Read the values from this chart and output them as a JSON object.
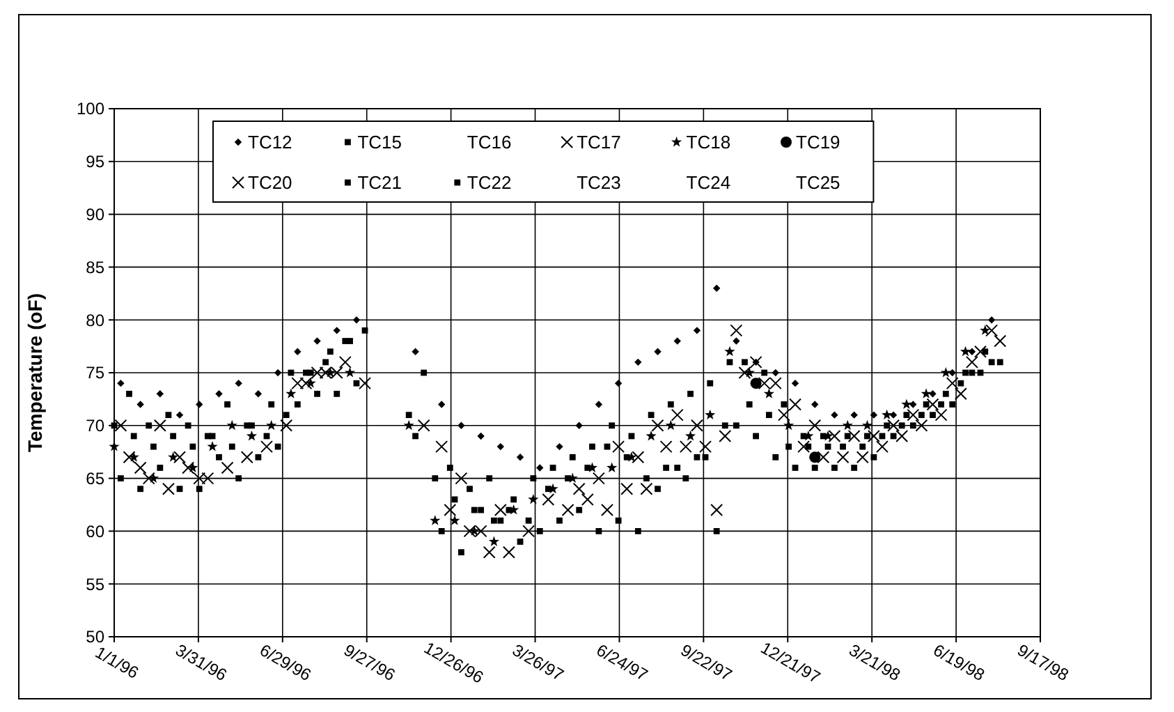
{
  "chart_data": {
    "type": "scatter",
    "ylabel": "Temperature (oF)",
    "xlim": [
      "1996-01-01",
      "1998-09-17"
    ],
    "xticks": [
      {
        "value": "1996-01-01",
        "label": "1/1/96"
      },
      {
        "value": "1996-03-31",
        "label": "3/31/96"
      },
      {
        "value": "1996-06-29",
        "label": "6/29/96"
      },
      {
        "value": "1996-09-27",
        "label": "9/27/96"
      },
      {
        "value": "1996-12-26",
        "label": "12/26/96"
      },
      {
        "value": "1997-03-26",
        "label": "3/26/97"
      },
      {
        "value": "1997-06-24",
        "label": "6/24/97"
      },
      {
        "value": "1997-09-22",
        "label": "9/22/97"
      },
      {
        "value": "1997-12-21",
        "label": "12/21/97"
      },
      {
        "value": "1998-03-21",
        "label": "3/21/98"
      },
      {
        "value": "1998-06-19",
        "label": "6/19/98"
      },
      {
        "value": "1998-09-17",
        "label": "9/17/98"
      }
    ],
    "ylim": [
      50,
      100
    ],
    "yticks": [
      50,
      55,
      60,
      65,
      70,
      75,
      80,
      85,
      90,
      95,
      100
    ],
    "grid": true,
    "legend": "top left",
    "x": [
      "1996-01-08",
      "1996-01-29",
      "1996-02-19",
      "1996-03-11",
      "1996-04-01",
      "1996-04-22",
      "1996-05-13",
      "1996-06-03",
      "1996-06-24",
      "1996-07-15",
      "1996-08-05",
      "1996-08-26",
      "1996-09-16",
      "1996-11-18",
      "1996-12-16",
      "1997-01-06",
      "1997-01-27",
      "1997-02-17",
      "1997-03-10",
      "1997-03-31",
      "1997-04-21",
      "1997-05-12",
      "1997-06-02",
      "1997-06-23",
      "1997-07-14",
      "1997-08-04",
      "1997-08-25",
      "1997-09-15",
      "1997-10-06",
      "1997-10-27",
      "1997-11-17",
      "1997-12-08",
      "1997-12-29",
      "1998-01-19",
      "1998-02-09",
      "1998-03-02",
      "1998-03-23",
      "1998-04-13",
      "1998-05-04",
      "1998-05-25",
      "1998-06-15",
      "1998-07-06",
      "1998-07-27"
    ],
    "series": [
      {
        "name": "TC12",
        "color": "#000000",
        "marker": "diamond",
        "values": [
          74,
          72,
          73,
          71,
          72,
          73,
          74,
          73,
          75,
          77,
          78,
          79,
          80,
          77,
          72,
          70,
          69,
          68,
          67,
          66,
          68,
          70,
          72,
          74,
          76,
          77,
          78,
          79,
          83,
          78,
          76,
          75,
          74,
          72,
          71,
          71,
          71,
          71,
          72,
          73,
          75,
          77,
          80
        ]
      },
      {
        "name": "TC15",
        "color": "#000000",
        "marker": "square",
        "x": [
          "1996-01-17",
          "1996-02-07",
          "1996-02-28",
          "1996-03-20",
          "1996-04-10",
          "1996-05-01",
          "1996-05-22",
          "1996-06-12",
          "1996-07-03",
          "1996-07-24",
          "1996-08-14",
          "1996-09-04",
          "1996-09-25",
          "1996-11-27",
          "1996-12-25",
          "1997-01-15",
          "1997-02-05",
          "1997-02-26",
          "1997-03-19",
          "1997-04-09",
          "1997-04-30",
          "1997-05-21",
          "1997-06-11",
          "1997-07-02",
          "1997-07-23",
          "1997-08-13",
          "1997-09-03",
          "1997-09-24",
          "1997-10-15",
          "1997-11-05",
          "1997-11-26",
          "1997-12-17",
          "1998-01-07",
          "1998-01-28",
          "1998-02-18",
          "1998-03-11",
          "1998-04-01",
          "1998-04-22",
          "1998-05-13",
          "1998-06-03",
          "1998-06-24",
          "1998-07-15",
          "1998-08-05"
        ],
        "values": [
          73,
          70,
          71,
          70,
          69,
          72,
          70,
          69,
          71,
          75,
          76,
          78,
          79,
          75,
          66,
          64,
          65,
          62,
          61,
          64,
          65,
          66,
          68,
          67,
          65,
          66,
          65,
          67,
          70,
          76,
          75,
          72,
          69,
          69,
          68,
          68,
          69,
          70,
          71,
          72,
          74,
          75,
          76
        ]
      },
      {
        "name": "TC16",
        "color": "#000000",
        "marker": "none",
        "values": [
          null,
          null,
          null,
          null,
          null,
          null,
          null,
          null,
          null,
          null,
          null,
          null,
          null,
          null,
          null,
          null,
          null,
          null,
          null,
          null,
          null,
          null,
          null,
          null,
          null,
          null,
          null,
          null,
          null,
          null,
          null,
          null,
          null,
          null,
          null,
          null,
          null,
          null,
          null,
          null,
          null,
          null,
          null
        ]
      },
      {
        "name": "TC17",
        "color": "#000000",
        "marker": "cross",
        "values": [
          70,
          66,
          70,
          67,
          65,
          null,
          null,
          null,
          null,
          74,
          75,
          75,
          null,
          null,
          68,
          65,
          60,
          62,
          null,
          null,
          null,
          64,
          65,
          68,
          67,
          70,
          71,
          70,
          62,
          79,
          76,
          74,
          72,
          70,
          69,
          69,
          69,
          70,
          71,
          72,
          74,
          76,
          79
        ]
      },
      {
        "name": "TC18",
        "color": "#000000",
        "marker": "star",
        "x": [
          "1996-01-01",
          "1996-01-22",
          "1996-02-12",
          "1996-03-04",
          "1996-03-25",
          "1996-04-15",
          "1996-05-06",
          "1996-05-27",
          "1996-06-17",
          "1996-07-08",
          "1996-07-29",
          "1996-08-19",
          "1996-09-09",
          "1996-11-11",
          "1996-12-09",
          "1996-12-30",
          "1997-01-20",
          "1997-02-10",
          "1997-03-03",
          "1997-03-24",
          "1997-04-14",
          "1997-05-05",
          "1997-05-26",
          "1997-06-16",
          "1997-07-07",
          "1997-07-28",
          "1997-08-18",
          "1997-09-08",
          "1997-09-29",
          "1997-10-20",
          "1997-11-10",
          "1997-12-01",
          "1997-12-22",
          "1998-01-12",
          "1998-02-02",
          "1998-02-23",
          "1998-03-16",
          "1998-04-06",
          "1998-04-27",
          "1998-05-18",
          "1998-06-08",
          "1998-06-29",
          "1998-07-20"
        ],
        "values": [
          68,
          67,
          65,
          67,
          66,
          68,
          70,
          69,
          70,
          73,
          74,
          75,
          75,
          70,
          61,
          61,
          60,
          59,
          62,
          63,
          64,
          65,
          66,
          66,
          67,
          69,
          70,
          69,
          71,
          77,
          75,
          73,
          70,
          69,
          69,
          70,
          70,
          71,
          72,
          73,
          75,
          77,
          79
        ]
      },
      {
        "name": "TC19",
        "color": "#000000",
        "marker": "circle",
        "x": [
          "1997-11-17",
          "1998-01-19"
        ],
        "values": [
          74,
          67
        ]
      },
      {
        "name": "TC20",
        "color": "#000000",
        "marker": "cross",
        "x": [
          "1996-01-17",
          "1996-02-07",
          "1996-02-28",
          "1996-03-20",
          "1996-04-10",
          "1996-05-01",
          "1996-05-22",
          "1996-06-12",
          "1996-07-03",
          "1996-07-24",
          "1996-08-14",
          "1996-09-04",
          "1996-09-25",
          "1996-11-27",
          "1996-12-25",
          "1997-01-15",
          "1997-02-05",
          "1997-02-26",
          "1997-03-19",
          "1997-04-09",
          "1997-04-30",
          "1997-05-21",
          "1997-06-11",
          "1997-07-02",
          "1997-07-23",
          "1997-08-13",
          "1997-09-03",
          "1997-09-24",
          "1997-10-15",
          "1997-11-05",
          "1997-11-26",
          "1997-12-17",
          "1998-01-07",
          "1998-01-28",
          "1998-02-18",
          "1998-03-11",
          "1998-04-01",
          "1998-04-22",
          "1998-05-13",
          "1998-06-03",
          "1998-06-24",
          "1998-07-15",
          "1998-08-05"
        ],
        "values": [
          67,
          65,
          64,
          66,
          65,
          66,
          67,
          68,
          70,
          74,
          75,
          76,
          74,
          70,
          62,
          60,
          58,
          58,
          60,
          63,
          62,
          63,
          62,
          64,
          64,
          68,
          68,
          68,
          69,
          75,
          74,
          71,
          68,
          67,
          67,
          67,
          68,
          69,
          70,
          71,
          73,
          77,
          78
        ]
      },
      {
        "name": "TC21",
        "color": "#000000",
        "marker": "square",
        "values": [
          65,
          64,
          66,
          64,
          64,
          67,
          65,
          67,
          68,
          72,
          73,
          73,
          74,
          69,
          60,
          58,
          62,
          61,
          59,
          60,
          61,
          62,
          60,
          61,
          60,
          64,
          66,
          67,
          60,
          70,
          69,
          67,
          66,
          66,
          66,
          66,
          67,
          69,
          70,
          71,
          72,
          75,
          76
        ]
      },
      {
        "name": "TC22",
        "color": "#000000",
        "marker": "square",
        "x": [
          "1996-01-01",
          "1996-01-22",
          "1996-02-12",
          "1996-03-04",
          "1996-03-25",
          "1996-04-15",
          "1996-05-06",
          "1996-05-27",
          "1996-06-17",
          "1996-07-08",
          "1996-07-29",
          "1996-08-19",
          "1996-09-09",
          "1996-11-11",
          "1996-12-09",
          "1996-12-30",
          "1997-01-20",
          "1997-02-10",
          "1997-03-03",
          "1997-03-24",
          "1997-04-14",
          "1997-05-05",
          "1997-05-26",
          "1997-06-16",
          "1997-07-07",
          "1997-07-28",
          "1997-08-18",
          "1997-09-08",
          "1997-09-29",
          "1997-10-20",
          "1997-11-10",
          "1997-12-01",
          "1997-12-22",
          "1998-01-12",
          "1998-02-02",
          "1998-02-23",
          "1998-03-16",
          "1998-04-06",
          "1998-04-27",
          "1998-05-18",
          "1998-06-08",
          "1998-06-29",
          "1998-07-20"
        ],
        "values": [
          70,
          69,
          68,
          69,
          68,
          69,
          68,
          70,
          72,
          75,
          75,
          77,
          78,
          71,
          65,
          63,
          62,
          61,
          63,
          65,
          66,
          67,
          68,
          70,
          69,
          71,
          72,
          73,
          74,
          76,
          72,
          71,
          68,
          68,
          68,
          69,
          69,
          70,
          71,
          72,
          73,
          75,
          77
        ]
      },
      {
        "name": "TC23",
        "color": "#000000",
        "marker": "none",
        "values": [
          null,
          null,
          null,
          null,
          null,
          null,
          null,
          null,
          null,
          null,
          null,
          null,
          null,
          null,
          null,
          null,
          null,
          null,
          null,
          null,
          null,
          null,
          null,
          null,
          null,
          null,
          null,
          null,
          null,
          null,
          null,
          null,
          null,
          null,
          null,
          null,
          null,
          null,
          null,
          null,
          null,
          null,
          null
        ]
      },
      {
        "name": "TC24",
        "color": "#000000",
        "marker": "none",
        "values": [
          null,
          null,
          null,
          null,
          null,
          null,
          null,
          null,
          null,
          null,
          null,
          null,
          null,
          null,
          null,
          null,
          null,
          null,
          null,
          null,
          null,
          null,
          null,
          null,
          null,
          null,
          null,
          null,
          null,
          null,
          null,
          null,
          null,
          null,
          null,
          null,
          null,
          null,
          null,
          null,
          null,
          null,
          null
        ]
      },
      {
        "name": "TC25",
        "color": "#000000",
        "marker": "none",
        "values": [
          null,
          null,
          null,
          null,
          null,
          null,
          null,
          null,
          null,
          null,
          null,
          null,
          null,
          null,
          null,
          null,
          null,
          null,
          null,
          null,
          null,
          null,
          null,
          null,
          null,
          null,
          null,
          null,
          null,
          null,
          null,
          null,
          null,
          null,
          null,
          null,
          null,
          null,
          null,
          null,
          null,
          null,
          null
        ]
      }
    ]
  }
}
